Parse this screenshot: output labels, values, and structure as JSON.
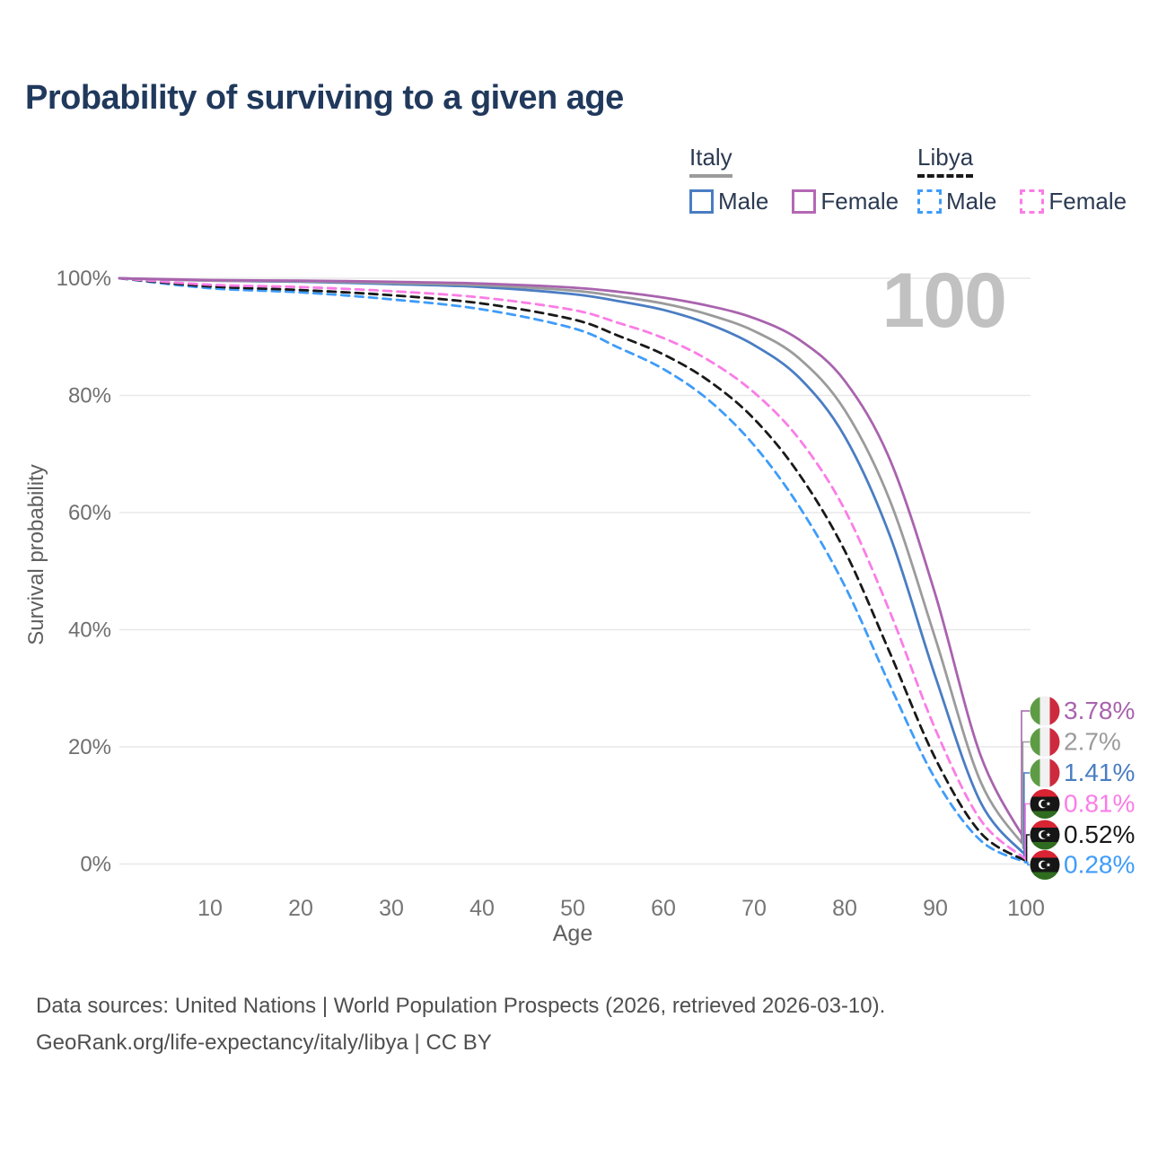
{
  "header": {
    "title": "Probability of surviving to a given age"
  },
  "legend": {
    "italy": {
      "label": "Italy",
      "male": "Male",
      "female": "Female",
      "male_color": "#4a7dc3",
      "female_color": "#b468b4",
      "all_color": "#9b9b9b",
      "line_style": "solid"
    },
    "libya": {
      "label": "Libya",
      "male": "Male",
      "female": "Female",
      "male_color": "#3f9cf9",
      "female_color": "#fa7de6",
      "all_color": "#191919",
      "line_style": "dashed"
    }
  },
  "watermark": "100",
  "chart_data": {
    "type": "line",
    "title": "Probability of surviving to a given age",
    "xlabel": "Age",
    "ylabel": "Survival probability",
    "xlim": [
      0,
      100
    ],
    "ylim": [
      0,
      100
    ],
    "x_ticks": [
      10,
      20,
      30,
      40,
      50,
      60,
      70,
      80,
      90,
      100
    ],
    "y_ticks": [
      0,
      20,
      40,
      60,
      80,
      100
    ],
    "y_tick_labels": [
      "0%",
      "20%",
      "40%",
      "60%",
      "80%",
      "100%"
    ],
    "grid": "horizontal",
    "legend_position": "top-right",
    "age_cursor": 100,
    "x": [
      0,
      10,
      20,
      30,
      40,
      50,
      55,
      60,
      65,
      70,
      75,
      80,
      85,
      90,
      95,
      100
    ],
    "series": [
      {
        "name": "Italy Female",
        "country": "italy",
        "sex": "female",
        "color": "#a963ae",
        "dash": "solid",
        "end_value": 3.78,
        "end_label": "3.78%",
        "values": [
          100,
          99.7,
          99.6,
          99.4,
          99.1,
          98.4,
          97.7,
          96.7,
          95.3,
          93.2,
          89.5,
          82.5,
          69,
          46,
          18.5,
          3.78
        ]
      },
      {
        "name": "Italy",
        "country": "italy",
        "sex": "both",
        "color": "#9b9b9b",
        "dash": "solid",
        "end_value": 2.7,
        "end_label": "2.7%",
        "values": [
          100,
          99.6,
          99.5,
          99.2,
          98.8,
          97.9,
          96.9,
          95.7,
          93.8,
          91.0,
          86.3,
          77.5,
          62,
          38.5,
          14,
          2.7
        ]
      },
      {
        "name": "Italy Male",
        "country": "italy",
        "sex": "male",
        "color": "#4a7dc3",
        "dash": "solid",
        "end_value": 1.41,
        "end_label": "1.41%",
        "values": [
          100,
          99.6,
          99.4,
          99.0,
          98.5,
          97.3,
          96.1,
          94.6,
          92.2,
          88.6,
          83.0,
          73,
          56,
          32,
          10.5,
          1.41
        ]
      },
      {
        "name": "Libya Female",
        "country": "libya",
        "sex": "female",
        "color": "#fa7de6",
        "dash": "dashed",
        "end_value": 0.81,
        "end_label": "0.81%",
        "values": [
          100,
          98.9,
          98.5,
          97.8,
          96.7,
          94.6,
          92.4,
          89.8,
          86.0,
          80.5,
          72.5,
          60.5,
          43,
          23,
          7.5,
          0.81
        ]
      },
      {
        "name": "Libya",
        "country": "libya",
        "sex": "both",
        "color": "#191919",
        "dash": "dashed",
        "end_value": 0.52,
        "end_label": "0.52%",
        "values": [
          100,
          98.6,
          98.0,
          97.1,
          95.7,
          93.0,
          90.2,
          87.0,
          82.5,
          76.0,
          66.5,
          53.5,
          36,
          18,
          5.3,
          0.52
        ]
      },
      {
        "name": "Libya Male",
        "country": "libya",
        "sex": "male",
        "color": "#3f9cf9",
        "dash": "dashed",
        "end_value": 0.28,
        "end_label": "0.28%",
        "values": [
          100,
          98.3,
          97.6,
          96.4,
          94.7,
          91.5,
          88.2,
          84.5,
          79.2,
          71.5,
          61.0,
          47.5,
          30.5,
          14.5,
          4.0,
          0.28
        ]
      }
    ],
    "flag_colors": {
      "italy": {
        "green": "#5d9c44",
        "white": "#f1f1f1",
        "red": "#cd2a3e"
      },
      "libya": {
        "red": "#d92433",
        "black": "#161616",
        "green": "#2f6c1f",
        "crescent": "#ffffff"
      }
    }
  },
  "footer": {
    "line1": "Data sources: United Nations | World Population Prospects (2026, retrieved 2026-03-10).",
    "line2": "GeoRank.org/life-expectancy/italy/libya | CC BY"
  }
}
